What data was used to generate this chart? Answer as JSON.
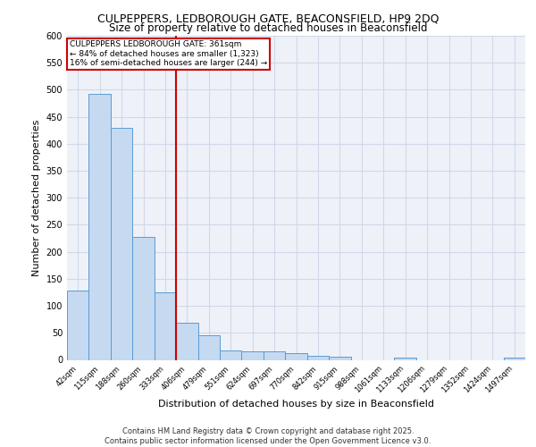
{
  "title1": "CULPEPPERS, LEDBOROUGH GATE, BEACONSFIELD, HP9 2DQ",
  "title2": "Size of property relative to detached houses in Beaconsfield",
  "xlabel": "Distribution of detached houses by size in Beaconsfield",
  "ylabel": "Number of detached properties",
  "categories": [
    "42sqm",
    "115sqm",
    "188sqm",
    "260sqm",
    "333sqm",
    "406sqm",
    "479sqm",
    "551sqm",
    "624sqm",
    "697sqm",
    "770sqm",
    "842sqm",
    "915sqm",
    "988sqm",
    "1061sqm",
    "1133sqm",
    "1206sqm",
    "1279sqm",
    "1352sqm",
    "1424sqm",
    "1497sqm"
  ],
  "values": [
    128,
    492,
    430,
    228,
    125,
    68,
    45,
    17,
    16,
    16,
    12,
    7,
    5,
    0,
    0,
    4,
    0,
    0,
    0,
    0,
    4
  ],
  "bar_color": "#c5d9f0",
  "bar_edge_color": "#5b9bd5",
  "grid_color": "#d0d8e8",
  "bg_color": "#eef2f8",
  "red_line_x": 4.5,
  "annotation_text": "CULPEPPERS LEDBOROUGH GATE: 361sqm\n← 84% of detached houses are smaller (1,323)\n16% of semi-detached houses are larger (244) →",
  "annotation_box_color": "#ffffff",
  "annotation_box_edge": "#cc0000",
  "footer": "Contains HM Land Registry data © Crown copyright and database right 2025.\nContains public sector information licensed under the Open Government Licence v3.0.",
  "ylim": [
    0,
    600
  ],
  "yticks": [
    0,
    50,
    100,
    150,
    200,
    250,
    300,
    350,
    400,
    450,
    500,
    550,
    600
  ]
}
